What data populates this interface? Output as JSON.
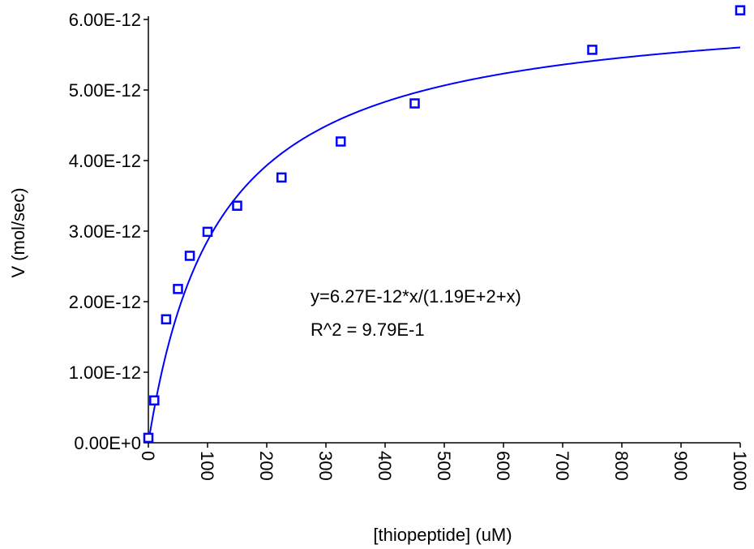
{
  "chart_data": {
    "type": "scatter",
    "xlabel": "[thiopeptide] (uM)",
    "ylabel": "V (mol/sec)",
    "xlim": [
      0,
      1000
    ],
    "ylim": [
      0,
      6e-12
    ],
    "x_ticks": [
      0,
      100,
      200,
      300,
      400,
      500,
      600,
      700,
      800,
      900,
      1000
    ],
    "x_tick_labels": [
      "0",
      "100",
      "200",
      "300",
      "400",
      "500",
      "600",
      "700",
      "800",
      "900",
      "1000"
    ],
    "y_ticks": [
      0,
      1e-12,
      2e-12,
      3e-12,
      4e-12,
      5e-12,
      6e-12
    ],
    "y_tick_labels": [
      "0.00E+0",
      "1.00E-12",
      "2.00E-12",
      "3.00E-12",
      "4.00E-12",
      "5.00E-12",
      "6.00E-12"
    ],
    "grid": false,
    "color": "#0000ff",
    "series": [
      {
        "type": "scatter",
        "marker": "open-square",
        "x": [
          0,
          10,
          30,
          50,
          70,
          100,
          150,
          225,
          325,
          450,
          750,
          1000
        ],
        "y": [
          7e-14,
          6e-13,
          1.75e-12,
          2.18e-12,
          2.65e-12,
          2.99e-12,
          3.36e-12,
          3.76e-12,
          4.27e-12,
          4.81e-12,
          5.57e-12,
          6.13e-12
        ]
      },
      {
        "type": "fit-line",
        "model": "michaelis-menten",
        "vmax": 6.27e-12,
        "km": 119
      }
    ],
    "annotations": [
      "y=6.27E-12*x/(1.19E+2+x)",
      "R^2 = 9.79E-1"
    ]
  }
}
